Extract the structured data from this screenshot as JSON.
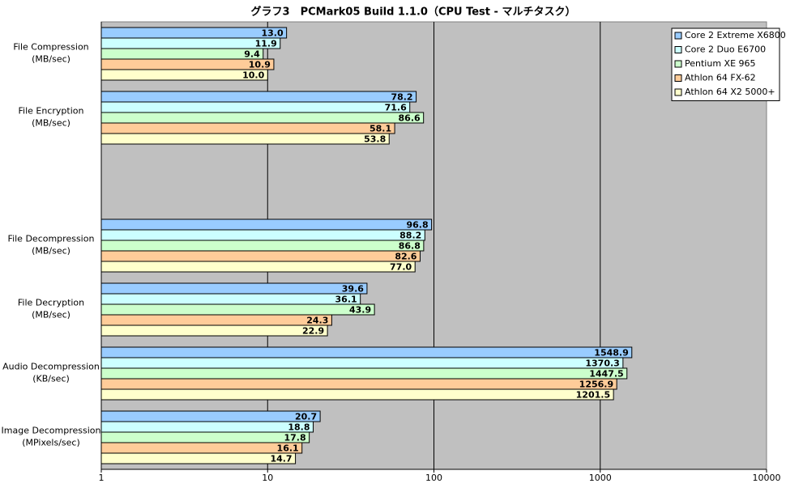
{
  "chart_data": {
    "type": "bar",
    "orientation": "horizontal",
    "title": "グラフ3　PCMark05 Build 1.1.0（CPU Test - マルチタスク）",
    "categories": [
      "File Compression\n(MB/sec)",
      "File Encryption\n(MB/sec)",
      null,
      "File Decompression\n(MB/sec)",
      "File Decryption\n(MB/sec)",
      "Audio Decompression\n(KB/sec)",
      "Image Decompression\n(MPixels/sec)"
    ],
    "series": [
      {
        "name": "Core 2 Extreme X6800",
        "color": "#99ccff",
        "values": [
          13.0,
          78.2,
          null,
          96.8,
          39.6,
          1548.9,
          20.7
        ],
        "value_labels": [
          "13.0",
          "78.2",
          null,
          "96.8",
          "39.6",
          "1548.9",
          "20.7"
        ]
      },
      {
        "name": "Core 2 Duo E6700",
        "color": "#ccffff",
        "values": [
          11.9,
          71.6,
          null,
          88.2,
          36.1,
          1370.3,
          18.8
        ],
        "value_labels": [
          "11.9",
          "71.6",
          null,
          "88.2",
          "36.1",
          "1370.3",
          "18.8"
        ]
      },
      {
        "name": "Pentium XE 965",
        "color": "#ccffcc",
        "values": [
          9.4,
          86.6,
          null,
          86.8,
          43.9,
          1447.5,
          17.8
        ],
        "value_labels": [
          "9.4",
          "86.6",
          null,
          "86.8",
          "43.9",
          "1447.5",
          "17.8"
        ]
      },
      {
        "name": "Athlon 64 FX-62",
        "color": "#ffcc99",
        "values": [
          10.9,
          58.1,
          null,
          82.6,
          24.3,
          1256.9,
          16.1
        ],
        "value_labels": [
          "10.9",
          "58.1",
          null,
          "82.6",
          "24.3",
          "1256.9",
          "16.1"
        ]
      },
      {
        "name": "Athlon 64 X2 5000+",
        "color": "#ffffcc",
        "values": [
          10.0,
          53.8,
          null,
          77.0,
          22.9,
          1201.5,
          14.7
        ],
        "value_labels": [
          "10.0",
          "53.8",
          null,
          "77.0",
          "22.9",
          "1201.5",
          "14.7"
        ]
      }
    ],
    "xscale": "log",
    "xlim": [
      1,
      10000
    ],
    "xticks": [
      1,
      10,
      100,
      1000,
      10000
    ],
    "grid": true,
    "plot_background": "#c0c0c0",
    "legend": "upper right"
  }
}
